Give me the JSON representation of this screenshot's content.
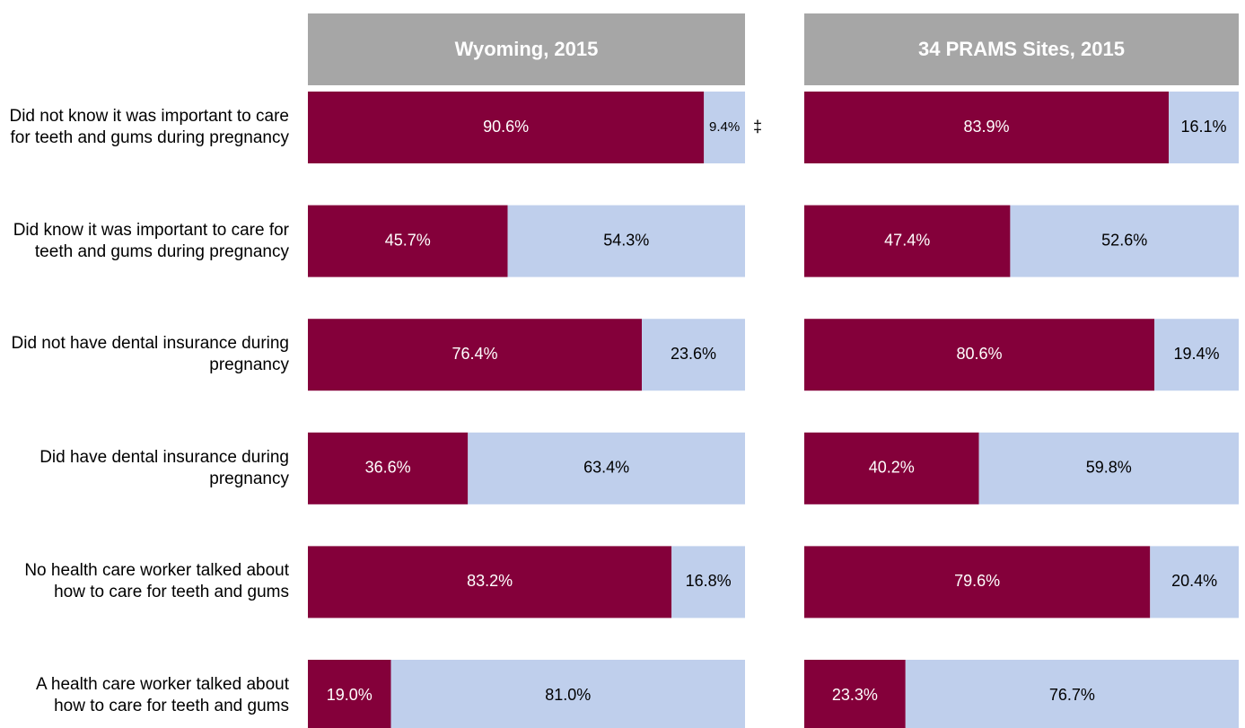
{
  "chart_data": [
    {
      "type": "bar",
      "title": "Wyoming, 2015",
      "categories": [
        "Did not know it was important to care for teeth and gums during pregnancy",
        "Did know it was important to care for teeth and gums during pregnancy",
        "Did not have dental insurance during pregnancy",
        "Did have dental insurance during pregnancy",
        "No health care worker talked about how to care for teeth and gums",
        "A health care worker talked about how to care for teeth and gums"
      ],
      "series": [
        {
          "color": "#84003a",
          "values": [
            90.6,
            45.7,
            76.4,
            36.6,
            83.2,
            19.0
          ],
          "value_labels": [
            "90.6%",
            "45.7%",
            "76.4%",
            "36.6%",
            "83.2%",
            "19.0%"
          ]
        },
        {
          "color": "#bfcfec",
          "values": [
            9.4,
            54.3,
            23.6,
            63.4,
            16.8,
            81.0
          ],
          "value_labels": [
            "9.4%",
            "54.3%",
            "23.6%",
            "63.4%",
            "16.8%",
            "81.0%"
          ]
        }
      ],
      "annotations": [
        "‡"
      ]
    },
    {
      "type": "bar",
      "title": "34 PRAMS Sites, 2015",
      "series": [
        {
          "color": "#84003a",
          "values": [
            83.9,
            47.4,
            80.6,
            40.2,
            79.6,
            23.3
          ],
          "value_labels": [
            "83.9%",
            "47.4%",
            "80.6%",
            "40.2%",
            "79.6%",
            "23.3%"
          ]
        },
        {
          "color": "#bfcfec",
          "values": [
            16.1,
            52.6,
            19.4,
            59.8,
            20.4,
            76.7
          ],
          "value_labels": [
            "16.1%",
            "52.6%",
            "19.4%",
            "59.8%",
            "20.4%",
            "76.7%"
          ]
        }
      ]
    }
  ]
}
